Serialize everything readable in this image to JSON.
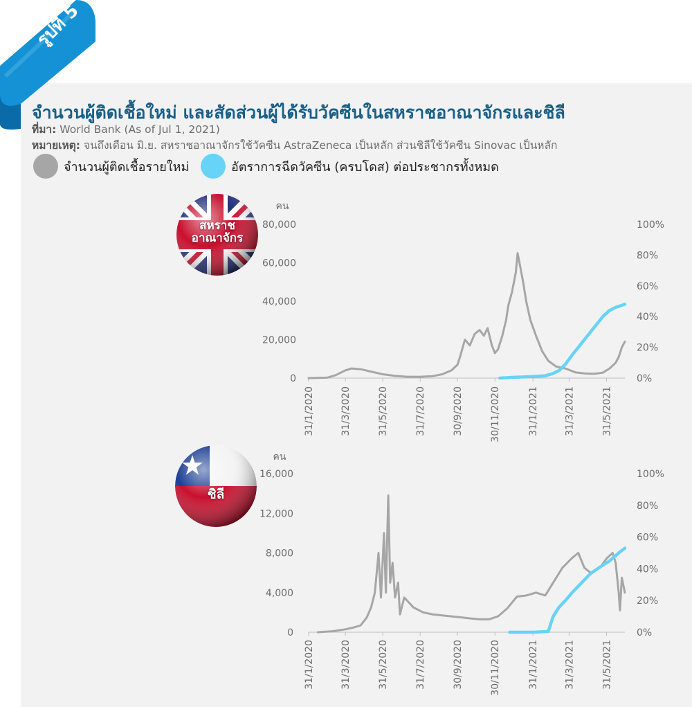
{
  "badge": "รูปที่ 5",
  "title": "จำนวนผู้ติดเชื้อใหม่ และสัดส่วนผู้ได้รับวัคซีนในสหราชอาณาจักรและชิลี",
  "source_label": "ที่มา:",
  "source_text": " World Bank (As of Jul 1, 2021)",
  "note_label": "หมายเหตุ:",
  "note_text": " จนถึงเดือน มิ.ย. สหราชอาณาจักรใช้วัคซีน AstraZeneca เป็นหลัก ส่วนชิลีใช้วัคซีน Sinovac เป็นหลัก",
  "legend": [
    {
      "label": "จำนวนผู้ติดเชื้อรายใหม่",
      "color": "#a6a6a6"
    },
    {
      "label": "อัตราการฉีดวัคซีน (ครบโดส) ต่อประชากรทั้งหมด",
      "color": "#66d3f7"
    }
  ],
  "chart_data": [
    {
      "type": "line",
      "country_label_lines": [
        "สหราช",
        "อาณาจักร"
      ],
      "flag": "uk-flag-ball",
      "ylabel": "คน",
      "ylim": [
        0,
        80000
      ],
      "yticks": [
        "0",
        "20,000",
        "40,000",
        "60,000",
        "80,000"
      ],
      "y2lim": [
        0,
        100
      ],
      "y2ticks": [
        "0%",
        "20%",
        "40%",
        "60%",
        "80%",
        "100%"
      ],
      "xticks": [
        "31/1/2020",
        "31/3/2020",
        "31/5/2020",
        "31/7/2020",
        "30/9/2020",
        "30/11/2020",
        "31/1/2021",
        "31/3/2021",
        "31/5/2021"
      ],
      "series": [
        {
          "axis": "left",
          "color": "#a6a6a6",
          "points": [
            [
              "2020-01-31",
              0
            ],
            [
              "2020-03-01",
              200
            ],
            [
              "2020-03-15",
              1500
            ],
            [
              "2020-03-31",
              4000
            ],
            [
              "2020-04-10",
              5000
            ],
            [
              "2020-04-25",
              4600
            ],
            [
              "2020-05-10",
              3500
            ],
            [
              "2020-05-31",
              2000
            ],
            [
              "2020-06-20",
              1200
            ],
            [
              "2020-07-10",
              700
            ],
            [
              "2020-07-31",
              700
            ],
            [
              "2020-08-20",
              1000
            ],
            [
              "2020-09-05",
              2000
            ],
            [
              "2020-09-20",
              4000
            ],
            [
              "2020-09-30",
              7000
            ],
            [
              "2020-10-05",
              12000
            ],
            [
              "2020-10-12",
              20000
            ],
            [
              "2020-10-20",
              17000
            ],
            [
              "2020-10-28",
              23000
            ],
            [
              "2020-11-05",
              25000
            ],
            [
              "2020-11-12",
              22000
            ],
            [
              "2020-11-18",
              26000
            ],
            [
              "2020-11-25",
              17000
            ],
            [
              "2020-11-30",
              13000
            ],
            [
              "2020-12-05",
              15000
            ],
            [
              "2020-12-12",
              22000
            ],
            [
              "2020-12-18",
              30000
            ],
            [
              "2020-12-22",
              38000
            ],
            [
              "2020-12-28",
              45000
            ],
            [
              "2021-01-03",
              55000
            ],
            [
              "2021-01-06",
              65000
            ],
            [
              "2021-01-09",
              60000
            ],
            [
              "2021-01-15",
              50000
            ],
            [
              "2021-01-20",
              40000
            ],
            [
              "2021-01-27",
              30000
            ],
            [
              "2021-02-05",
              22000
            ],
            [
              "2021-02-15",
              14000
            ],
            [
              "2021-02-25",
              9000
            ],
            [
              "2021-03-10",
              6000
            ],
            [
              "2021-03-25",
              5000
            ],
            [
              "2021-04-10",
              3000
            ],
            [
              "2021-04-25",
              2400
            ],
            [
              "2021-05-10",
              2200
            ],
            [
              "2021-05-25",
              2800
            ],
            [
              "2021-06-05",
              5000
            ],
            [
              "2021-06-15",
              8000
            ],
            [
              "2021-06-20",
              11000
            ],
            [
              "2021-06-25",
              16000
            ],
            [
              "2021-06-30",
              19000
            ]
          ]
        },
        {
          "axis": "right",
          "color": "#66d3f7",
          "points": [
            [
              "2020-12-08",
              0
            ],
            [
              "2020-12-31",
              0.5
            ],
            [
              "2021-01-31",
              1
            ],
            [
              "2021-02-20",
              1.5
            ],
            [
              "2021-03-05",
              3
            ],
            [
              "2021-03-15",
              5
            ],
            [
              "2021-03-25",
              9
            ],
            [
              "2021-04-05",
              15
            ],
            [
              "2021-04-15",
              20
            ],
            [
              "2021-04-25",
              25
            ],
            [
              "2021-05-05",
              30
            ],
            [
              "2021-05-15",
              35
            ],
            [
              "2021-05-25",
              40
            ],
            [
              "2021-06-05",
              44
            ],
            [
              "2021-06-15",
              46
            ],
            [
              "2021-06-30",
              48
            ]
          ]
        }
      ]
    },
    {
      "type": "line",
      "country_label_lines": [
        "ชิลี"
      ],
      "flag": "chile-flag-ball",
      "ylabel": "คน",
      "ylim": [
        0,
        16000
      ],
      "yticks": [
        "0",
        "4,000",
        "8,000",
        "12,000",
        "16,000"
      ],
      "y2lim": [
        0,
        100
      ],
      "y2ticks": [
        "0%",
        "20%",
        "40%",
        "60%",
        "80%",
        "100%"
      ],
      "xticks": [
        "31/1/2020",
        "31/3/2020",
        "31/5/2020",
        "31/7/2020",
        "30/9/2020",
        "30/11/2020",
        "31/1/2021",
        "31/3/2021",
        "31/5/2021"
      ],
      "series": [
        {
          "axis": "left",
          "color": "#a6a6a6",
          "points": [
            [
              "2020-02-15",
              0
            ],
            [
              "2020-03-10",
              100
            ],
            [
              "2020-04-01",
              300
            ],
            [
              "2020-04-15",
              500
            ],
            [
              "2020-04-25",
              700
            ],
            [
              "2020-05-05",
              1500
            ],
            [
              "2020-05-12",
              2500
            ],
            [
              "2020-05-18",
              4000
            ],
            [
              "2020-05-24",
              8000
            ],
            [
              "2020-05-28",
              3500
            ],
            [
              "2020-06-02",
              10000
            ],
            [
              "2020-06-05",
              4000
            ],
            [
              "2020-06-09",
              13800
            ],
            [
              "2020-06-12",
              5000
            ],
            [
              "2020-06-16",
              7000
            ],
            [
              "2020-06-20",
              3500
            ],
            [
              "2020-06-25",
              5000
            ],
            [
              "2020-06-28",
              1800
            ],
            [
              "2020-07-05",
              3500
            ],
            [
              "2020-07-20",
              2500
            ],
            [
              "2020-08-05",
              2000
            ],
            [
              "2020-08-20",
              1800
            ],
            [
              "2020-09-05",
              1700
            ],
            [
              "2020-09-20",
              1600
            ],
            [
              "2020-10-05",
              1500
            ],
            [
              "2020-10-20",
              1400
            ],
            [
              "2020-11-05",
              1300
            ],
            [
              "2020-11-20",
              1300
            ],
            [
              "2020-12-05",
              1600
            ],
            [
              "2020-12-20",
              2400
            ],
            [
              "2021-01-05",
              3600
            ],
            [
              "2021-01-20",
              3700
            ],
            [
              "2021-02-05",
              4000
            ],
            [
              "2021-02-20",
              3700
            ],
            [
              "2021-03-05",
              5000
            ],
            [
              "2021-03-20",
              6500
            ],
            [
              "2021-04-05",
              7500
            ],
            [
              "2021-04-15",
              8000
            ],
            [
              "2021-04-25",
              6500
            ],
            [
              "2021-05-05",
              6000
            ],
            [
              "2021-05-20",
              6500
            ],
            [
              "2021-06-01",
              7500
            ],
            [
              "2021-06-10",
              8000
            ],
            [
              "2021-06-15",
              7000
            ],
            [
              "2021-06-20",
              4000
            ],
            [
              "2021-06-22",
              2200
            ],
            [
              "2021-06-25",
              5500
            ],
            [
              "2021-06-30",
              4000
            ]
          ]
        },
        {
          "axis": "right",
          "color": "#66d3f7",
          "points": [
            [
              "2020-12-24",
              0
            ],
            [
              "2021-02-01",
              0
            ],
            [
              "2021-02-25",
              0.5
            ],
            [
              "2021-03-05",
              10
            ],
            [
              "2021-03-15",
              16
            ],
            [
              "2021-03-25",
              20
            ],
            [
              "2021-04-05",
              25
            ],
            [
              "2021-04-15",
              29
            ],
            [
              "2021-04-25",
              33
            ],
            [
              "2021-05-05",
              37
            ],
            [
              "2021-05-20",
              41
            ],
            [
              "2021-06-05",
              45
            ],
            [
              "2021-06-20",
              50
            ],
            [
              "2021-06-30",
              53
            ]
          ]
        }
      ]
    }
  ]
}
